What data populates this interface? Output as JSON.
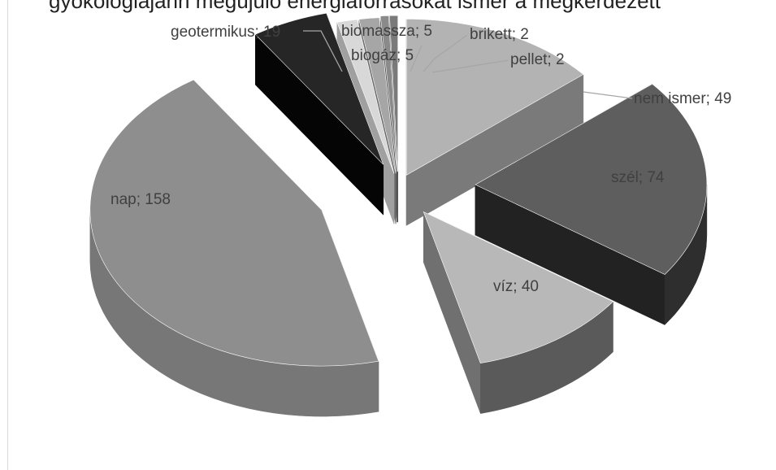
{
  "chart_data": {
    "type": "pie",
    "style": "3D exploded pie, grayscale",
    "title_visible_fragment": "gyökologiájánn megújuló energiaforrásokat ismer a megkérdezett",
    "slices": [
      {
        "label": "nem ismer",
        "value": 49,
        "text": "nem ismer; 49",
        "top": "#b3b3b3",
        "side": "#7a7a7a",
        "outer": "#686868"
      },
      {
        "label": "szél",
        "value": 74,
        "text": "szél; 74",
        "top": "#5e5e5e",
        "side": "#222222",
        "outer": "#2e2e2e"
      },
      {
        "label": "víz",
        "value": 40,
        "text": "víz; 40",
        "top": "#b8b8b8",
        "side": "#707070",
        "outer": "#5a5a5a"
      },
      {
        "label": "nap",
        "value": 158,
        "text": "nap; 158",
        "top": "#8e8e8e",
        "side": "#6e6e6e",
        "outer": "#777777"
      },
      {
        "label": "geotermikus",
        "value": 19,
        "text": "geotermikus; 19",
        "top": "#262626",
        "side": "#050505",
        "outer": "#111111"
      },
      {
        "label": "biogáz",
        "value": 5,
        "text": "biogáz; 5",
        "top": "#d8d8d8",
        "side": "#a0a0a0",
        "outer": "#b0b0b0"
      },
      {
        "label": "biomassza",
        "value": 5,
        "text": "biomassza; 5",
        "top": "#a6a6a6",
        "side": "#6a6a6a",
        "outer": "#7a7a7a"
      },
      {
        "label": "brikett",
        "value": 2,
        "text": "brikett; 2",
        "top": "#8a8a8a",
        "side": "#555555",
        "outer": "#5e5e5e"
      },
      {
        "label": "pellet",
        "value": 2,
        "text": "pellet; 2",
        "top": "#7a7a7a",
        "side": "#4a4a4a",
        "outer": "#525252"
      }
    ],
    "legend": "none",
    "data_labels": "category; value"
  }
}
